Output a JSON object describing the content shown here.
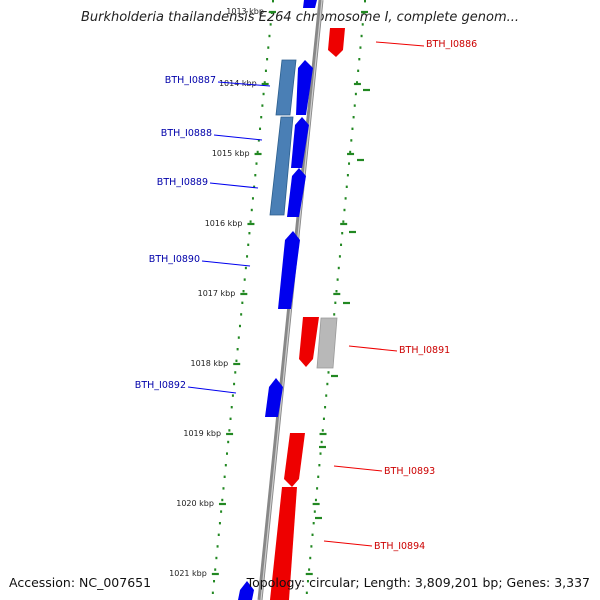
{
  "title": "Burkholderia thailandensis E264 chromosome I, complete genom...",
  "footer": {
    "accession": "Accession: NC_007651",
    "summary": "Topology: circular; Length: 3,809,201 bp; Genes: 3,337"
  },
  "colors": {
    "forward": "#0000ee",
    "reverse": "#ee0000",
    "forward_label": "#0000aa",
    "reverse_label": "#cc0000",
    "tick": "#228822",
    "backbone": "#888888",
    "feature_blue": "#4a7fb5",
    "feature_gray": "#b8b8b8"
  },
  "ticks": [
    {
      "label": "1013 kbp"
    },
    {
      "label": "1014 kbp"
    },
    {
      "label": "1015 kbp"
    },
    {
      "label": "1016 kbp"
    },
    {
      "label": "1017 kbp"
    },
    {
      "label": "1018 kbp"
    },
    {
      "label": "1019 kbp"
    },
    {
      "label": "1020 kbp"
    },
    {
      "label": "1021 kbp"
    }
  ],
  "genes": [
    {
      "name": "BTH_I0886",
      "strand": "reverse"
    },
    {
      "name": "BTH_I0887",
      "strand": "forward"
    },
    {
      "name": "BTH_I0888",
      "strand": "forward"
    },
    {
      "name": "BTH_I0889",
      "strand": "forward"
    },
    {
      "name": "BTH_I0890",
      "strand": "forward"
    },
    {
      "name": "BTH_I0891",
      "strand": "reverse"
    },
    {
      "name": "BTH_I0892",
      "strand": "forward"
    },
    {
      "name": "BTH_I0893",
      "strand": "reverse"
    },
    {
      "name": "BTH_I0894",
      "strand": "reverse"
    }
  ]
}
